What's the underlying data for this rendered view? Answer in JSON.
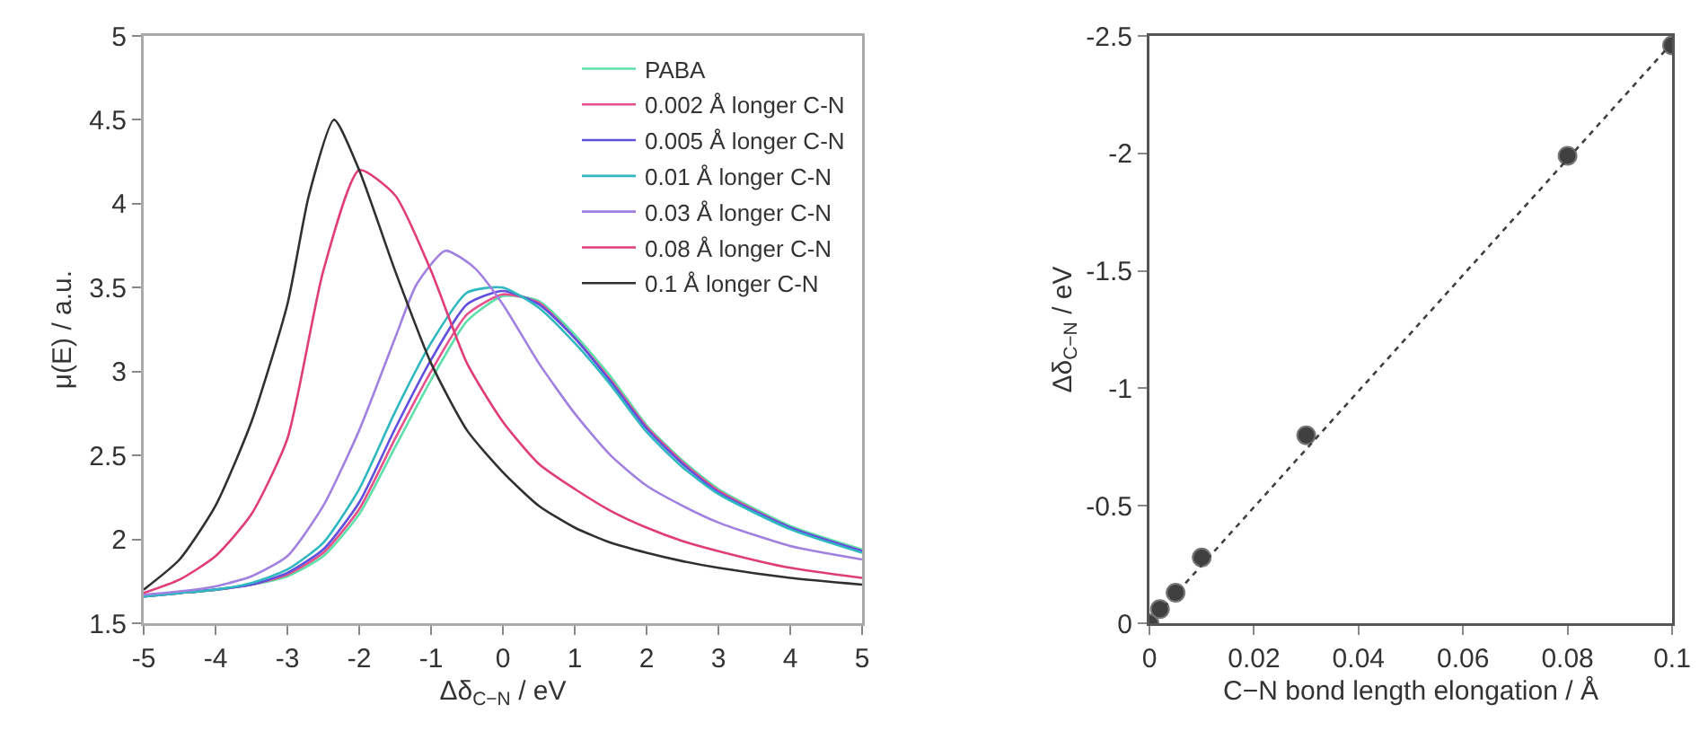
{
  "chart_data": [
    {
      "type": "line",
      "xlabel": "Δδ$_{C−N}$ / eV",
      "ylabel": "μ(E) / a.u.",
      "xlim": [
        -5,
        5
      ],
      "xticks": [
        -5,
        -4,
        -3,
        -2,
        -1,
        0,
        1,
        2,
        3,
        4,
        5
      ],
      "ylim": [
        1.5,
        5
      ],
      "yticks": [
        1.5,
        2,
        2.5,
        3,
        3.5,
        4,
        4.5,
        5
      ],
      "grid": false,
      "legend": "top right",
      "x": [
        -5,
        -4.5,
        -4,
        -3.5,
        -3,
        -2.5,
        -2,
        -1.5,
        -1,
        -0.5,
        0,
        0.5,
        1,
        1.5,
        2,
        2.5,
        3,
        4,
        5
      ],
      "series": [
        {
          "name": "PABA",
          "color": "#5ee0a8",
          "values": [
            1.66,
            1.68,
            1.7,
            1.73,
            1.78,
            1.9,
            2.15,
            2.55,
            2.95,
            3.3,
            3.45,
            3.42,
            3.22,
            2.97,
            2.68,
            2.47,
            2.3,
            2.08,
            1.94
          ]
        },
        {
          "name": "0.002 Å longer C-N",
          "color": "#e8508a",
          "values": [
            1.66,
            1.68,
            1.7,
            1.73,
            1.79,
            1.92,
            2.18,
            2.6,
            3.0,
            3.34,
            3.46,
            3.41,
            3.2,
            2.95,
            2.67,
            2.46,
            2.29,
            2.07,
            1.93
          ]
        },
        {
          "name": "0.005 Å longer C-N",
          "color": "#6050e0",
          "values": [
            1.66,
            1.68,
            1.7,
            1.73,
            1.8,
            1.94,
            2.22,
            2.66,
            3.07,
            3.4,
            3.48,
            3.4,
            3.2,
            2.94,
            2.66,
            2.45,
            2.28,
            2.07,
            1.93
          ]
        },
        {
          "name": "0.01 Å longer C-N",
          "color": "#30b8c0",
          "values": [
            1.66,
            1.68,
            1.7,
            1.74,
            1.82,
            1.98,
            2.3,
            2.76,
            3.17,
            3.47,
            3.5,
            3.38,
            3.17,
            2.92,
            2.64,
            2.43,
            2.27,
            2.06,
            1.92
          ]
        },
        {
          "name": "0.03 Å longer C-N",
          "color": "#a080e0",
          "x": [
            -5,
            -4.5,
            -4,
            -3.5,
            -3,
            -2.5,
            -2,
            -1.5,
            -1.2,
            -0.8,
            -0.4,
            0,
            0.5,
            1,
            1.5,
            2,
            2.5,
            3,
            4,
            5
          ],
          "values": [
            1.67,
            1.69,
            1.72,
            1.78,
            1.9,
            2.2,
            2.65,
            3.2,
            3.52,
            3.72,
            3.62,
            3.4,
            3.05,
            2.75,
            2.5,
            2.32,
            2.2,
            2.1,
            1.96,
            1.88
          ]
        },
        {
          "name": "0.08 Å longer C-N",
          "color": "#e03c78",
          "values": [
            1.68,
            1.76,
            1.9,
            2.15,
            2.6,
            3.6,
            4.2,
            4.05,
            3.6,
            3.05,
            2.7,
            2.45,
            2.3,
            2.17,
            2.07,
            1.99,
            1.93,
            1.83,
            1.77
          ]
        },
        {
          "name": "0.1 Å longer C-N",
          "color": "#303030",
          "x": [
            -5,
            -4.5,
            -4,
            -3.5,
            -3,
            -2.7,
            -2.35,
            -2,
            -1.5,
            -1,
            -0.5,
            0,
            0.5,
            1,
            1.5,
            2,
            2.5,
            3,
            4,
            5
          ],
          "values": [
            1.7,
            1.88,
            2.2,
            2.7,
            3.4,
            4.05,
            4.5,
            4.2,
            3.6,
            3.05,
            2.65,
            2.4,
            2.2,
            2.07,
            1.98,
            1.92,
            1.87,
            1.83,
            1.77,
            1.73
          ]
        }
      ]
    },
    {
      "type": "scatter",
      "xlabel": "C−N bond length elongation / Å",
      "ylabel": "Δδ$_{C−N}$ / eV",
      "xlim": [
        0,
        0.1
      ],
      "xticks": [
        0,
        0.02,
        0.04,
        0.06,
        0.08,
        0.1
      ],
      "ylim": [
        0,
        -2.5
      ],
      "yticks": [
        0,
        -0.5,
        -1,
        -1.5,
        -2,
        -2.5
      ],
      "grid": false,
      "marker": "circle",
      "x": [
        0,
        0.002,
        0.005,
        0.01,
        0.03,
        0.08,
        0.1
      ],
      "series": [
        {
          "color": "#404040",
          "values": [
            0,
            -0.06,
            -0.13,
            -0.28,
            -0.8,
            -1.99,
            -2.46
          ]
        },
        {
          "type": "line",
          "color": "#404040",
          "line_style": "dotted",
          "marker": "none",
          "x": [
            0,
            0.1
          ],
          "values": [
            0,
            -2.47
          ]
        }
      ]
    }
  ]
}
